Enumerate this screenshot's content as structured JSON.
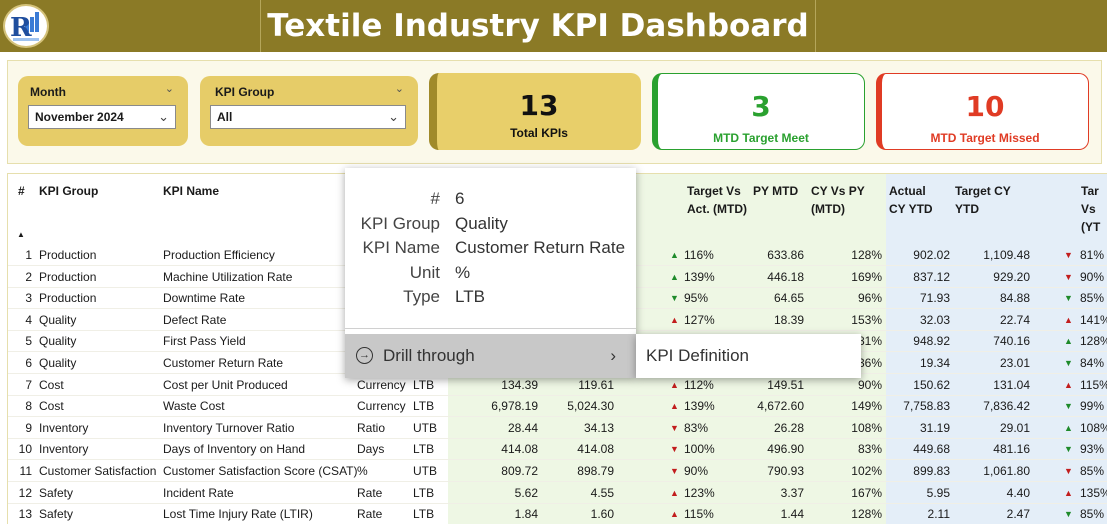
{
  "header": {
    "title": "Textile Industry KPI Dashboard"
  },
  "colors": {
    "header_bg": "#8b7a26",
    "slicer_bg": "#e6cc68",
    "meet_green": "#2aa12f",
    "missed_red": "#e03b24"
  },
  "filters": {
    "month": {
      "label": "Month",
      "value": "November 2024",
      "icon": "chevron-down-icon"
    },
    "kpi_group": {
      "label": "KPI Group",
      "value": "All",
      "icon": "chevron-down-icon"
    }
  },
  "cards": {
    "total": {
      "value": "13",
      "label": "Total KPIs"
    },
    "meet": {
      "value": "3",
      "label": "MTD Target Meet"
    },
    "missed": {
      "value": "10",
      "label": "MTD Target Missed"
    }
  },
  "table": {
    "headers": {
      "num": "#",
      "group": "KPI Group",
      "name": "KPI Name",
      "tva_mtd": "Target Vs Act. (MTD)",
      "py_mtd": "PY MTD",
      "cyvpy_mtd": "CY Vs PY (MTD)",
      "actual_ytd": "Actual CY YTD",
      "target_ytd": "Target CY YTD",
      "tva_ytd": "Tar Vs (YT"
    },
    "rows": [
      {
        "n": "1",
        "group": "Production",
        "name": "Production Efficiency",
        "unit": "",
        "type": "",
        "actual": "",
        "target": "",
        "arrow": "▲",
        "arrow_color": "green",
        "tva": "116%",
        "py": "633.86",
        "cypy": "128%",
        "aytd": "902.02",
        "tytd": "1,109.48",
        "arrow2": "▼",
        "arrow2_color": "red",
        "tva2": "81%"
      },
      {
        "n": "2",
        "group": "Production",
        "name": "Machine Utilization Rate",
        "unit": "",
        "type": "",
        "actual": "",
        "target": "",
        "arrow": "▲",
        "arrow_color": "green",
        "tva": "139%",
        "py": "446.18",
        "cypy": "169%",
        "aytd": "837.12",
        "tytd": "929.20",
        "arrow2": "▼",
        "arrow2_color": "red",
        "tva2": "90%"
      },
      {
        "n": "3",
        "group": "Production",
        "name": "Downtime Rate",
        "unit": "",
        "type": "",
        "actual": "",
        "target": "",
        "arrow": "▼",
        "arrow_color": "green",
        "tva": "95%",
        "py": "64.65",
        "cypy": "96%",
        "aytd": "71.93",
        "tytd": "84.88",
        "arrow2": "▼",
        "arrow2_color": "green",
        "tva2": "85%"
      },
      {
        "n": "4",
        "group": "Quality",
        "name": "Defect Rate",
        "unit": "",
        "type": "",
        "actual": "",
        "target": "",
        "arrow": "▲",
        "arrow_color": "red",
        "tva": "127%",
        "py": "18.39",
        "cypy": "153%",
        "aytd": "32.03",
        "tytd": "22.74",
        "arrow2": "▲",
        "arrow2_color": "red",
        "tva2": "141%"
      },
      {
        "n": "5",
        "group": "Quality",
        "name": "First Pass Yield",
        "unit": "",
        "type": "",
        "actual": "",
        "target": "",
        "arrow": "",
        "arrow_color": "",
        "tva": "",
        "py": "",
        "cypy": "81%",
        "aytd": "948.92",
        "tytd": "740.16",
        "arrow2": "▲",
        "arrow2_color": "green",
        "tva2": "128%"
      },
      {
        "n": "6",
        "group": "Quality",
        "name": "Customer Return Rate",
        "unit": "",
        "type": "",
        "actual": "",
        "target": "",
        "arrow": "",
        "arrow_color": "",
        "tva": "",
        "py": "",
        "cypy": "36%",
        "aytd": "19.34",
        "tytd": "23.01",
        "arrow2": "▼",
        "arrow2_color": "green",
        "tva2": "84%"
      },
      {
        "n": "7",
        "group": "Cost",
        "name": "Cost per Unit Produced",
        "unit": "Currency",
        "type": "LTB",
        "actual": "134.39",
        "target": "119.61",
        "arrow": "▲",
        "arrow_color": "red",
        "tva": "112%",
        "py": "149.51",
        "cypy": "90%",
        "aytd": "150.62",
        "tytd": "131.04",
        "arrow2": "▲",
        "arrow2_color": "red",
        "tva2": "115%"
      },
      {
        "n": "8",
        "group": "Cost",
        "name": "Waste Cost",
        "unit": "Currency",
        "type": "LTB",
        "actual": "6,978.19",
        "target": "5,024.30",
        "arrow": "▲",
        "arrow_color": "red",
        "tva": "139%",
        "py": "4,672.60",
        "cypy": "149%",
        "aytd": "7,758.83",
        "tytd": "7,836.42",
        "arrow2": "▼",
        "arrow2_color": "green",
        "tva2": "99%"
      },
      {
        "n": "9",
        "group": "Inventory",
        "name": "Inventory Turnover Ratio",
        "unit": "Ratio",
        "type": "UTB",
        "actual": "28.44",
        "target": "34.13",
        "arrow": "▼",
        "arrow_color": "red",
        "tva": "83%",
        "py": "26.28",
        "cypy": "108%",
        "aytd": "31.19",
        "tytd": "29.01",
        "arrow2": "▲",
        "arrow2_color": "green",
        "tva2": "108%"
      },
      {
        "n": "10",
        "group": "Inventory",
        "name": "Days of Inventory on Hand",
        "unit": "Days",
        "type": "LTB",
        "actual": "414.08",
        "target": "414.08",
        "arrow": "▼",
        "arrow_color": "red",
        "tva": "100%",
        "py": "496.90",
        "cypy": "83%",
        "aytd": "449.68",
        "tytd": "481.16",
        "arrow2": "▼",
        "arrow2_color": "green",
        "tva2": "93%"
      },
      {
        "n": "11",
        "group": "Customer Satisfaction",
        "name": "Customer Satisfaction Score (CSAT)",
        "unit": "%",
        "type": "UTB",
        "actual": "809.72",
        "target": "898.79",
        "arrow": "▼",
        "arrow_color": "red",
        "tva": "90%",
        "py": "790.93",
        "cypy": "102%",
        "aytd": "899.83",
        "tytd": "1,061.80",
        "arrow2": "▼",
        "arrow2_color": "red",
        "tva2": "85%"
      },
      {
        "n": "12",
        "group": "Safety",
        "name": "Incident Rate",
        "unit": "Rate",
        "type": "LTB",
        "actual": "5.62",
        "target": "4.55",
        "arrow": "▲",
        "arrow_color": "red",
        "tva": "123%",
        "py": "3.37",
        "cypy": "167%",
        "aytd": "5.95",
        "tytd": "4.40",
        "arrow2": "▲",
        "arrow2_color": "red",
        "tva2": "135%"
      },
      {
        "n": "13",
        "group": "Safety",
        "name": "Lost Time Injury Rate (LTIR)",
        "unit": "Rate",
        "type": "LTB",
        "actual": "1.84",
        "target": "1.60",
        "arrow": "▲",
        "arrow_color": "red",
        "tva": "115%",
        "py": "1.44",
        "cypy": "128%",
        "aytd": "2.11",
        "tytd": "2.47",
        "arrow2": "▼",
        "arrow2_color": "green",
        "tva2": "85%"
      }
    ]
  },
  "tooltip": {
    "fields": [
      {
        "key": "#",
        "value": "6"
      },
      {
        "key": "KPI Group",
        "value": "Quality"
      },
      {
        "key": "KPI Name",
        "value": "Customer Return Rate"
      },
      {
        "key": "Unit",
        "value": "%"
      },
      {
        "key": "Type",
        "value": "LTB"
      }
    ],
    "menu": {
      "drill_through": "Drill through",
      "submenu_item": "KPI Definition"
    }
  }
}
